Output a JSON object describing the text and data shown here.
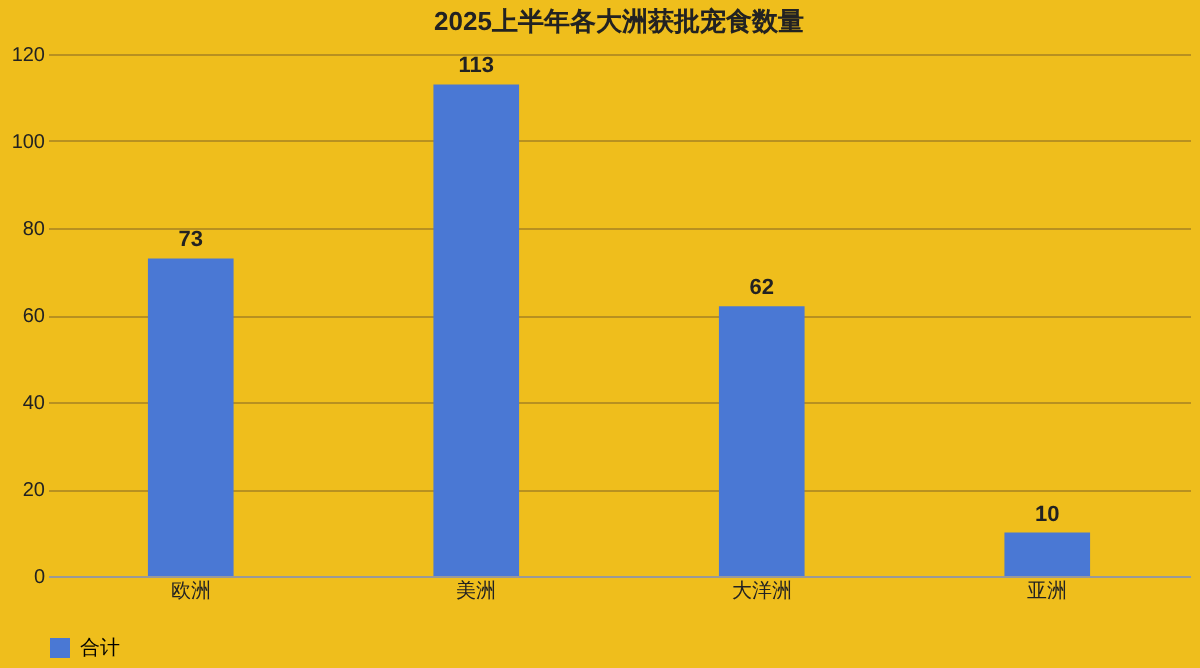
{
  "chart_data": {
    "type": "bar",
    "title": "2025上半年各大洲获批宠食数量",
    "categories": [
      "欧洲",
      "美洲",
      "大洋洲",
      "亚洲"
    ],
    "series": [
      {
        "name": "合计",
        "color": "#4a78d4",
        "values": [
          73,
          113,
          62,
          10
        ]
      }
    ],
    "ylim": [
      0,
      120
    ],
    "yticks": [
      0,
      20,
      40,
      60,
      80,
      100,
      120
    ],
    "grid": "y",
    "legend": "bottom",
    "data_labels": true
  }
}
